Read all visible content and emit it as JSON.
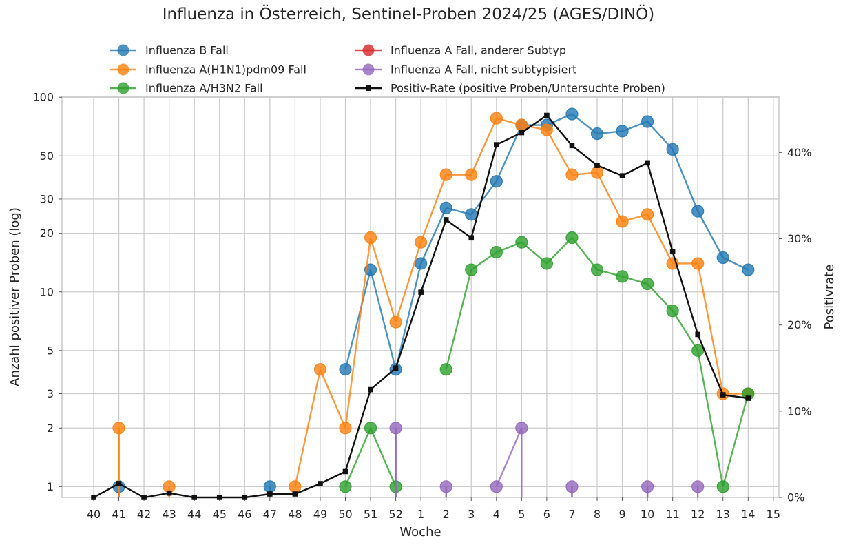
{
  "chart_data": {
    "type": "line",
    "title": "Influenza in Österreich, Sentinel-Proben 2024/25 (AGES/DINÖ)",
    "xlabel": "Woche",
    "ylabel": "Anzahl positiver Proben (log)",
    "y2label": "Positivrate",
    "yscale": "log",
    "ylim": [
      0.88,
      101
    ],
    "y2lim": [
      0,
      46.5
    ],
    "grid": true,
    "legend_position": "top-center",
    "categories": [
      "40",
      "41",
      "42",
      "43",
      "44",
      "45",
      "46",
      "47",
      "48",
      "49",
      "50",
      "51",
      "52",
      "1",
      "2",
      "3",
      "4",
      "5",
      "6",
      "7",
      "8",
      "9",
      "10",
      "11",
      "12",
      "13",
      "14",
      "15"
    ],
    "yticks": [
      1,
      2,
      3,
      5,
      10,
      20,
      30,
      50,
      100
    ],
    "ytick_labels": [
      "1",
      "2",
      "3",
      "5",
      "10",
      "20",
      "30",
      "50",
      "100"
    ],
    "y2ticks": [
      0,
      10,
      20,
      30,
      40
    ],
    "y2tick_labels": [
      "0%",
      "10%",
      "20%",
      "30%",
      "40%"
    ],
    "series": [
      {
        "name": "Influenza B Fall",
        "color": "#1f77b4",
        "marker": "circle",
        "axis": "left",
        "points": [
          [
            "41",
            1
          ],
          [
            "47",
            1
          ],
          [
            "50",
            4
          ],
          [
            "51",
            13
          ],
          [
            "52",
            4
          ],
          [
            "1",
            14
          ],
          [
            "2",
            27
          ],
          [
            "3",
            25
          ],
          [
            "4",
            37
          ],
          [
            "5",
            72
          ],
          [
            "6",
            72
          ],
          [
            "7",
            82
          ],
          [
            "8",
            65
          ],
          [
            "9",
            67
          ],
          [
            "10",
            75
          ],
          [
            "11",
            54
          ],
          [
            "12",
            26
          ],
          [
            "13",
            15
          ],
          [
            "14",
            13
          ]
        ]
      },
      {
        "name": "Influenza A(H1N1)pdm09 Fall",
        "color": "#ff7f0e",
        "marker": "circle",
        "axis": "left",
        "points": [
          [
            "41",
            2
          ],
          [
            "43",
            1
          ],
          [
            "48",
            1
          ],
          [
            "49",
            4
          ],
          [
            "50",
            2
          ],
          [
            "51",
            19
          ],
          [
            "52",
            7
          ],
          [
            "1",
            18
          ],
          [
            "2",
            40
          ],
          [
            "3",
            40
          ],
          [
            "4",
            78
          ],
          [
            "5",
            72
          ],
          [
            "6",
            68
          ],
          [
            "7",
            40
          ],
          [
            "8",
            41
          ],
          [
            "9",
            23
          ],
          [
            "10",
            25
          ],
          [
            "11",
            14
          ],
          [
            "12",
            14
          ],
          [
            "13",
            3
          ],
          [
            "14",
            3
          ]
        ]
      },
      {
        "name": "Influenza A/H3N2 Fall",
        "color": "#2ca02c",
        "marker": "circle",
        "axis": "left",
        "points": [
          [
            "50",
            1
          ],
          [
            "51",
            2
          ],
          [
            "52",
            1
          ],
          [
            "2",
            4
          ],
          [
            "3",
            13
          ],
          [
            "4",
            16
          ],
          [
            "5",
            18
          ],
          [
            "6",
            14
          ],
          [
            "7",
            19
          ],
          [
            "8",
            13
          ],
          [
            "9",
            12
          ],
          [
            "10",
            11
          ],
          [
            "11",
            8
          ],
          [
            "12",
            5
          ],
          [
            "13",
            1
          ],
          [
            "14",
            3
          ]
        ]
      },
      {
        "name": "Influenza A Fall, anderer Subtyp",
        "color": "#d62728",
        "marker": "circle",
        "axis": "left",
        "points": []
      },
      {
        "name": "Influenza A Fall, nicht subtypisiert",
        "color": "#9467bd",
        "marker": "circle",
        "axis": "left",
        "points": [
          [
            "52",
            2
          ],
          [
            "2",
            1
          ],
          [
            "4",
            1
          ],
          [
            "5",
            2
          ],
          [
            "7",
            1
          ],
          [
            "10",
            1
          ],
          [
            "12",
            1
          ]
        ]
      },
      {
        "name": "Positiv-Rate (positive Proben/Untersuchte Proben)",
        "color": "#111111",
        "marker": "square",
        "axis": "right",
        "points": [
          [
            "40",
            0
          ],
          [
            "41",
            1.6
          ],
          [
            "42",
            0
          ],
          [
            "43",
            0.5
          ],
          [
            "44",
            0
          ],
          [
            "45",
            0
          ],
          [
            "46",
            0
          ],
          [
            "47",
            0.4
          ],
          [
            "48",
            0.4
          ],
          [
            "49",
            1.6
          ],
          [
            "50",
            3
          ],
          [
            "51",
            12.5
          ],
          [
            "52",
            15
          ],
          [
            "1",
            23.8
          ],
          [
            "2",
            32.2
          ],
          [
            "3",
            30.1
          ],
          [
            "4",
            40.9
          ],
          [
            "5",
            42.3
          ],
          [
            "6",
            44.3
          ],
          [
            "7",
            40.8
          ],
          [
            "8",
            38.5
          ],
          [
            "9",
            37.3
          ],
          [
            "10",
            38.8
          ],
          [
            "11",
            28.5
          ],
          [
            "12",
            18.9
          ],
          [
            "13",
            11.9
          ],
          [
            "14",
            11.5
          ]
        ]
      }
    ]
  }
}
